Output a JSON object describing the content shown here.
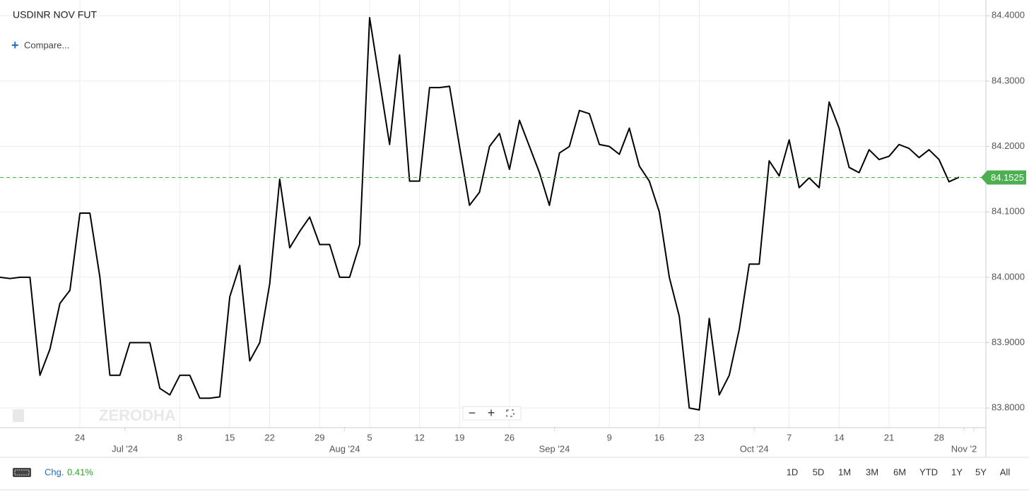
{
  "chart_data": {
    "type": "line",
    "categories": [
      null,
      null,
      null,
      null,
      null,
      null,
      null,
      null,
      "24",
      null,
      null,
      null,
      null,
      null,
      null,
      null,
      null,
      null,
      "8",
      null,
      null,
      null,
      null,
      "15",
      null,
      null,
      null,
      "22",
      null,
      null,
      null,
      null,
      "29",
      null,
      null,
      null,
      null,
      "5",
      null,
      null,
      null,
      null,
      "12",
      null,
      null,
      null,
      "19",
      null,
      null,
      null,
      null,
      "26",
      null,
      null,
      null,
      null,
      null,
      null,
      null,
      null,
      null,
      "9",
      null,
      null,
      null,
      null,
      "16",
      null,
      null,
      null,
      "23",
      null,
      null,
      null,
      null,
      null,
      null,
      null,
      null,
      "7",
      null,
      null,
      null,
      null,
      "14",
      null,
      null,
      null,
      null,
      "21",
      null,
      null,
      null,
      null,
      "28",
      null,
      null,
      null,
      null
    ],
    "months": [
      null,
      null,
      null,
      null,
      null,
      null,
      null,
      null,
      null,
      null,
      null,
      null,
      null,
      "Jul '24",
      null,
      null,
      null,
      null,
      null,
      null,
      null,
      null,
      null,
      null,
      null,
      null,
      null,
      null,
      null,
      null,
      null,
      null,
      null,
      null,
      null,
      "Aug '24",
      null,
      null,
      null,
      null,
      null,
      null,
      null,
      null,
      null,
      null,
      null,
      null,
      null,
      null,
      null,
      null,
      null,
      null,
      null,
      null,
      "Sep '24",
      null,
      null,
      null,
      null,
      null,
      null,
      null,
      null,
      null,
      null,
      null,
      null,
      null,
      null,
      null,
      null,
      null,
      null,
      null,
      "Oct '24",
      null,
      null,
      null,
      null,
      null,
      null,
      null,
      null,
      null,
      null,
      null,
      null,
      null,
      null,
      null,
      null,
      null,
      null,
      null,
      null,
      "Nov '2"
    ],
    "series": [
      {
        "name": "USDINR NOV FUT",
        "color": "#000000",
        "values": [
          84.0,
          83.998,
          84.0,
          84.0,
          83.85,
          83.89,
          83.96,
          83.98,
          84.098,
          84.098,
          84.0,
          83.85,
          83.85,
          83.9,
          83.9,
          83.9,
          83.83,
          83.82,
          83.85,
          83.85,
          83.815,
          83.815,
          83.817,
          83.97,
          84.018,
          83.872,
          83.9,
          83.99,
          84.15,
          84.045,
          84.07,
          84.092,
          84.05,
          84.05,
          84.0,
          84.0,
          84.05,
          84.397,
          84.3,
          84.203,
          84.34,
          84.147,
          84.147,
          84.29,
          84.29,
          84.292,
          84.2,
          84.11,
          84.13,
          84.2,
          84.22,
          84.165,
          84.24,
          84.2,
          84.16,
          84.11,
          84.19,
          84.2,
          84.255,
          84.25,
          84.203,
          84.2,
          84.188,
          84.228,
          84.17,
          84.147,
          84.1,
          84.0,
          83.94,
          83.8,
          83.797,
          83.937,
          83.82,
          83.85,
          83.92,
          84.02,
          84.02,
          84.178,
          84.155,
          84.21,
          84.137,
          84.152,
          84.137,
          84.268,
          84.228,
          84.168,
          84.16,
          84.195,
          84.18,
          84.185,
          84.203,
          84.197,
          84.183,
          84.195,
          84.18,
          84.146,
          84.153,
          null,
          null
        ]
      }
    ],
    "ylim": [
      83.771,
      84.424
    ],
    "yticks": [
      {
        "value": 83.8,
        "label": "83.8000"
      },
      {
        "value": 83.9,
        "label": "83.9000"
      },
      {
        "value": 84.0,
        "label": "84.0000"
      },
      {
        "value": 84.1,
        "label": "84.1000"
      },
      {
        "value": 84.2,
        "label": "84.2000"
      },
      {
        "value": 84.3,
        "label": "84.3000"
      },
      {
        "value": 84.4,
        "label": "84.4000"
      }
    ],
    "last_price": {
      "value": 84.1525,
      "label": "84.1525",
      "color": "#4caf50"
    },
    "grid": true
  },
  "header": {
    "symbol": "USDINR NOV FUT",
    "compare": "Compare..."
  },
  "watermark": "ZERODHA",
  "footer": {
    "change_label": "Chg.",
    "change": "0.41%",
    "ranges": [
      "1D",
      "5D",
      "1M",
      "3M",
      "6M",
      "YTD",
      "1Y",
      "5Y",
      "All"
    ]
  }
}
